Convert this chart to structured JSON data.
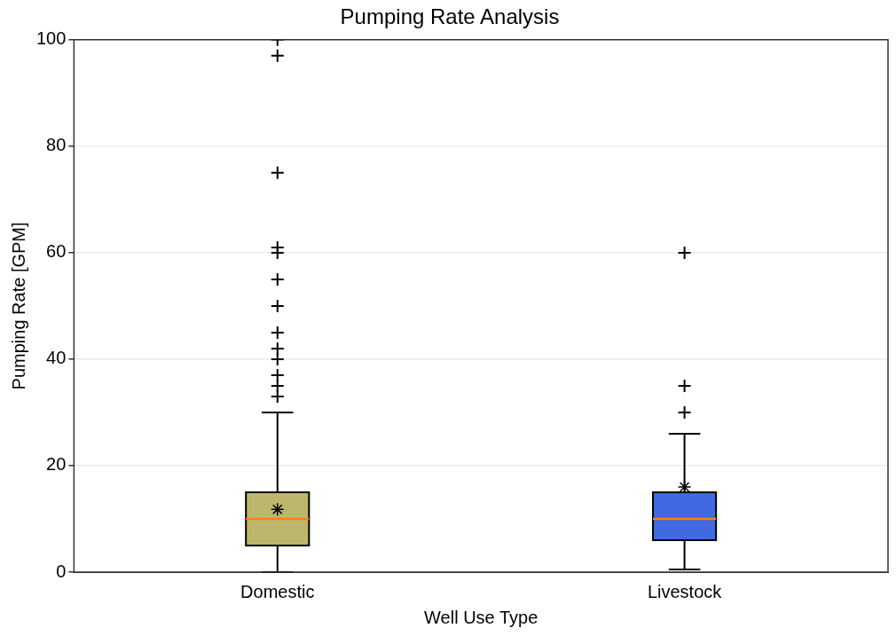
{
  "chart_data": {
    "type": "box",
    "title": "Pumping Rate Analysis",
    "xlabel": "Well Use Type",
    "ylabel": "Pumping Rate [GPM]",
    "categories": [
      "Domestic",
      "Livestock"
    ],
    "colors": [
      "#bdb76b",
      "#4169e1"
    ],
    "boxes": [
      {
        "low": 0,
        "q1": 5,
        "median": 10,
        "q3": 15,
        "high": 30,
        "mean": 11.8,
        "outliers": [
          33,
          35,
          37,
          40,
          42,
          45,
          50,
          55,
          60,
          61,
          75,
          97,
          100
        ]
      },
      {
        "low": 0.5,
        "q1": 6,
        "median": 10,
        "q3": 15,
        "high": 26,
        "mean": 16,
        "outliers": [
          30,
          35,
          60
        ]
      }
    ],
    "ylim": [
      0,
      100
    ],
    "yticks": [
      0,
      20,
      40,
      60,
      80,
      100
    ],
    "grid": "y"
  }
}
